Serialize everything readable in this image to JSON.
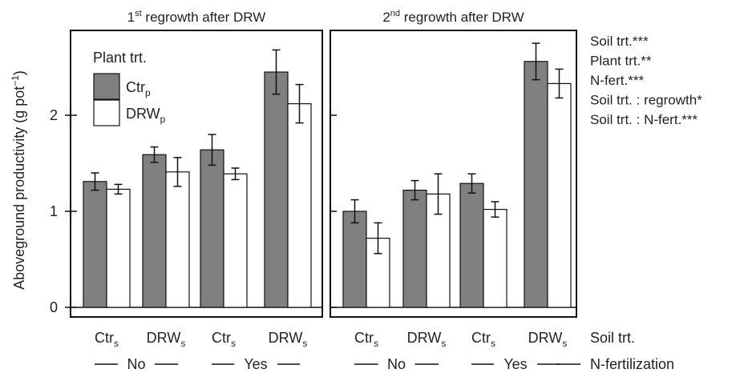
{
  "chart_data": {
    "type": "bar",
    "ylabel": "Aboveground productivity (g pot",
    "ylabel_sup": "−1",
    "ylabel_tail": ")",
    "ylim": [
      -0.1,
      2.88
    ],
    "yticks": [
      0,
      1,
      2
    ],
    "legend": {
      "title": "Plant trt.",
      "placement": "top-left",
      "entries": [
        {
          "base": "Ctr",
          "sub": "p",
          "color": "#808080"
        },
        {
          "base": "DRW",
          "sub": "p",
          "color": "#ffffff"
        }
      ]
    },
    "panels": [
      {
        "title_pre": "1",
        "title_sup": "st",
        "title_post": " regrowth after DRW",
        "groups": [
          {
            "label_base": "Ctr",
            "label_sub": "s",
            "values": [
              1.31,
              1.23
            ],
            "errors": [
              0.09,
              0.05
            ]
          },
          {
            "label_base": "DRW",
            "label_sub": "s",
            "values": [
              1.59,
              1.41
            ],
            "errors": [
              0.08,
              0.15
            ]
          },
          {
            "label_base": "Ctr",
            "label_sub": "s",
            "values": [
              1.64,
              1.39
            ],
            "errors": [
              0.16,
              0.06
            ]
          },
          {
            "label_base": "DRW",
            "label_sub": "s",
            "values": [
              2.45,
              2.12
            ],
            "errors": [
              0.23,
              0.2
            ]
          }
        ]
      },
      {
        "title_pre": "2",
        "title_sup": "nd",
        "title_post": " regrowth after DRW",
        "groups": [
          {
            "label_base": "Ctr",
            "label_sub": "s",
            "values": [
              1.0,
              0.72
            ],
            "errors": [
              0.12,
              0.16
            ]
          },
          {
            "label_base": "DRW",
            "label_sub": "s",
            "values": [
              1.22,
              1.18
            ],
            "errors": [
              0.1,
              0.21
            ]
          },
          {
            "label_base": "Ctr",
            "label_sub": "s",
            "values": [
              1.29,
              1.02
            ],
            "errors": [
              0.1,
              0.08
            ]
          },
          {
            "label_base": "DRW",
            "label_sub": "s",
            "values": [
              2.56,
              2.33
            ],
            "errors": [
              0.19,
              0.15
            ]
          }
        ]
      }
    ],
    "nfert_labels": [
      "No",
      "Yes"
    ],
    "row_labels": {
      "soil": "Soil trt.",
      "nfert": "N-fertilization"
    },
    "stats": [
      "Soil trt.***",
      "Plant trt.**",
      "N-fert.***",
      "Soil trt. : regrowth*",
      "Soil trt. : N-fert.***"
    ],
    "colors": {
      "ctr": "#808080",
      "drw": "#ffffff",
      "frame": "#111111",
      "text": "#222222"
    }
  }
}
